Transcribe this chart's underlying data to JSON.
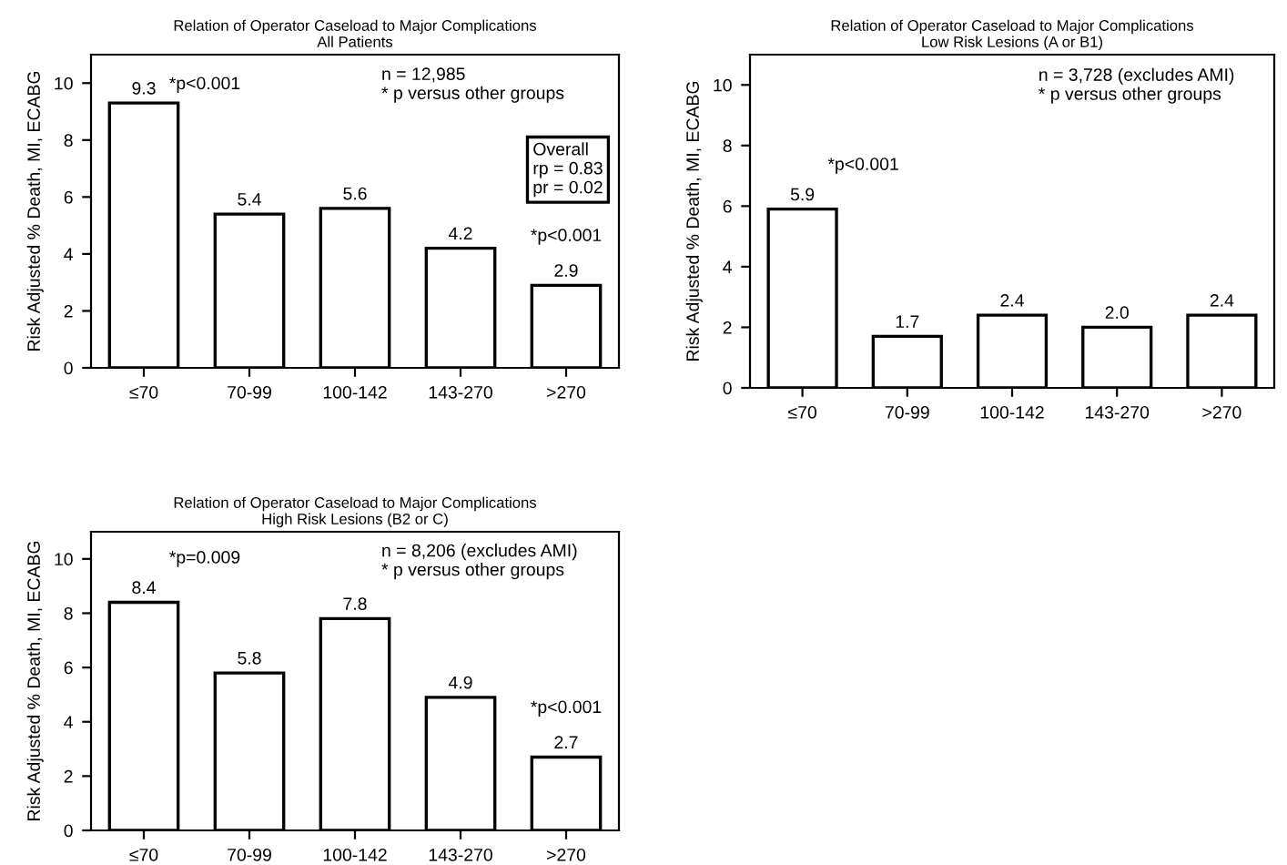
{
  "chart_data": [
    {
      "type": "bar",
      "title": "Relation of Operator Caseload to Major Complications\nAll Patients",
      "ylabel": "Risk Adjusted % Death, MI, ECABG",
      "categories": [
        "≤70",
        "70-99",
        "100-142",
        "143-270",
        ">270"
      ],
      "series": [
        {
          "color": "#ffffff",
          "values": [
            9.3,
            5.4,
            5.6,
            4.2,
            2.9
          ]
        }
      ],
      "ylim": [
        0,
        11
      ],
      "yticks": [
        0,
        2,
        4,
        6,
        8,
        10
      ],
      "data_labels": true,
      "grid": false,
      "legend": false,
      "annotations": [
        {
          "text": "*p<0.001",
          "x": "≤70",
          "y": 9.3
        },
        {
          "text": "*p<0.001",
          "x": ">270",
          "y": 2.9
        },
        "n = 12,985\n* p versus other groups",
        "Overall\nrp = 0.83\npr = 0.02"
      ]
    },
    {
      "type": "bar",
      "title": "Relation of Operator Caseload to Major Complications\nLow Risk Lesions (A or B1)",
      "ylabel": "Risk Adjusted % Death, MI, ECABG",
      "categories": [
        "≤70",
        "70-99",
        "100-142",
        "143-270",
        ">270"
      ],
      "series": [
        {
          "color": "#ffffff",
          "values": [
            5.9,
            1.7,
            2.4,
            2.0,
            2.4
          ],
          "value_labels": [
            "5.9",
            "1.7",
            "2.4",
            "2.0",
            "2.4"
          ]
        }
      ],
      "ylim": [
        0,
        11
      ],
      "yticks": [
        0,
        2,
        4,
        6,
        8,
        10
      ],
      "grid": false,
      "legend": false,
      "annotations": [
        {
          "text": "*p<0.001",
          "x": "≤70",
          "y": 5.9
        },
        "n = 3,728 (excludes AMI)\n* p versus other groups"
      ]
    },
    {
      "type": "bar",
      "title": "Relation of Operator Caseload to Major Complications\nHigh Risk Lesions (B2 or C)",
      "ylabel": "Risk Adjusted % Death, MI, ECABG",
      "categories": [
        "≤70",
        "70-99",
        "100-142",
        "143-270",
        ">270"
      ],
      "series": [
        {
          "color": "#ffffff",
          "values": [
            8.4,
            5.8,
            7.8,
            4.9,
            2.7
          ]
        }
      ],
      "ylim": [
        0,
        11
      ],
      "yticks": [
        0,
        2,
        4,
        6,
        8,
        10
      ],
      "data_labels": true,
      "grid": false,
      "legend": false,
      "annotations": [
        {
          "text": "*p=0.009",
          "x": "≤70",
          "y": 8.4
        },
        {
          "text": "*p<0.001",
          "x": ">270",
          "y": 2.7
        },
        "n = 8,206 (excludes AMI)\n* p versus other groups"
      ]
    }
  ]
}
